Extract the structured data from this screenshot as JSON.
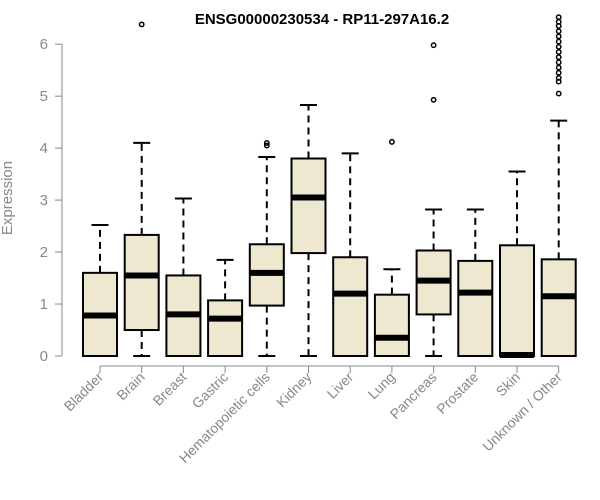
{
  "chart_data": {
    "type": "boxplot",
    "title": "ENSG00000230534 - RP11-297A16.2",
    "ylabel": "Expression",
    "ylim": [
      0,
      6.6
    ],
    "yticks": [
      0,
      1,
      2,
      3,
      4,
      5,
      6
    ],
    "grid": false,
    "box_fill": "#efe8d0",
    "box_stroke": "#000000",
    "axis_color": "#888888",
    "categories": [
      "Bladder",
      "Brain",
      "Breast",
      "Gastric",
      "Hematopoietic cells",
      "Kidney",
      "Liver",
      "Lung",
      "Pancreas",
      "Prostate",
      "Skin",
      "Unknown / Other"
    ],
    "boxes": [
      {
        "min": 0,
        "q1": 0,
        "median": 0.78,
        "q3": 1.6,
        "max": 2.52,
        "outliers": []
      },
      {
        "min": 0,
        "q1": 0.5,
        "median": 1.55,
        "q3": 2.33,
        "max": 4.1,
        "outliers": [
          6.38
        ]
      },
      {
        "min": 0,
        "q1": 0,
        "median": 0.8,
        "q3": 1.55,
        "max": 3.03,
        "outliers": []
      },
      {
        "min": 0,
        "q1": 0,
        "median": 0.72,
        "q3": 1.07,
        "max": 1.85,
        "outliers": []
      },
      {
        "min": 0,
        "q1": 0.97,
        "median": 1.6,
        "q3": 2.15,
        "max": 3.83,
        "outliers": [
          4.05,
          4.1
        ]
      },
      {
        "min": 0,
        "q1": 1.98,
        "median": 3.05,
        "q3": 3.8,
        "max": 4.83,
        "outliers": []
      },
      {
        "min": 0,
        "q1": 0,
        "median": 1.2,
        "q3": 1.9,
        "max": 3.9,
        "outliers": []
      },
      {
        "min": 0,
        "q1": 0,
        "median": 0.35,
        "q3": 1.18,
        "max": 1.67,
        "outliers": [
          4.12
        ]
      },
      {
        "min": 0,
        "q1": 0.8,
        "median": 1.45,
        "q3": 2.03,
        "max": 2.82,
        "outliers": [
          4.93,
          5.98
        ]
      },
      {
        "min": 0,
        "q1": 0,
        "median": 1.22,
        "q3": 1.83,
        "max": 2.82,
        "outliers": []
      },
      {
        "min": 0,
        "q1": 0,
        "median": 0.02,
        "q3": 2.13,
        "max": 3.55,
        "outliers": []
      },
      {
        "min": 0,
        "q1": 0,
        "median": 1.15,
        "q3": 1.86,
        "max": 4.53,
        "outliers": [
          5.05,
          5.28,
          5.35,
          5.45,
          5.55,
          5.65,
          5.75,
          5.85,
          5.95,
          6.05,
          6.15,
          6.25,
          6.35,
          6.43,
          6.52
        ]
      }
    ]
  }
}
